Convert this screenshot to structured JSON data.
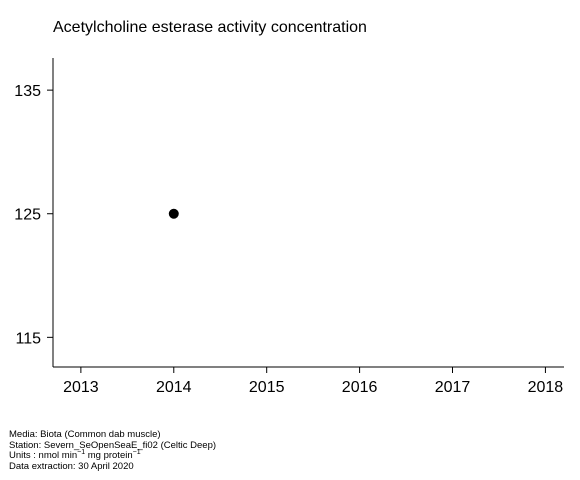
{
  "chart_data": {
    "type": "scatter",
    "title": "Acetylcholine esterase activity concentration",
    "xlabel": "",
    "ylabel": "",
    "xlim": [
      2012.7,
      2018.2
    ],
    "ylim": [
      112.6,
      137.6
    ],
    "x_ticks": [
      "2013",
      "2014",
      "2015",
      "2016",
      "2017",
      "2018"
    ],
    "x_tick_values": [
      2013,
      2014,
      2015,
      2016,
      2017,
      2018
    ],
    "y_ticks": [
      "135",
      "125",
      "115"
    ],
    "y_tick_values": [
      135,
      125,
      115
    ],
    "grid": false,
    "marker_color": "#000000",
    "points": [
      {
        "x": 2014,
        "y": 125
      }
    ]
  },
  "footer": {
    "media": "Media: Biota (Common dab muscle)",
    "station": "Station: Severn_SeOpenSeaE_fi02 (Celtic Deep)",
    "units_prefix": "Units : nmol min",
    "units_exp1": "−1",
    "units_middle": " mg protein",
    "units_exp2": "−1",
    "extraction": "Data extraction: 30 April 2020"
  }
}
